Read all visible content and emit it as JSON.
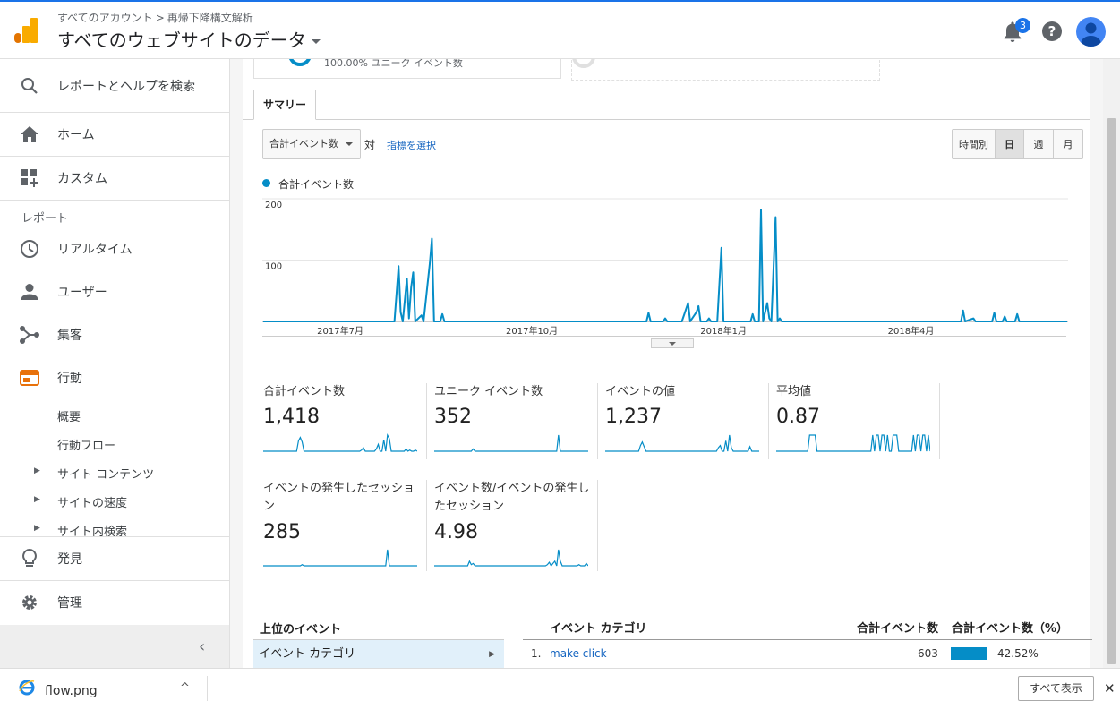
{
  "header": {
    "breadcrumb": [
      "すべてのアカウント",
      "再帰下降構文解析"
    ],
    "breadcrumb_sep": ">",
    "property_title": "すべてのウェブサイトのデータ",
    "notification_count": "3",
    "help_label": "?"
  },
  "sidebar": {
    "search": "レポートとヘルプを検索",
    "home": "ホーム",
    "custom": "カスタム",
    "reports_header": "レポート",
    "realtime": "リアルタイム",
    "audience": "ユーザー",
    "acquisition": "集客",
    "behavior": "行動",
    "behavior_sub": [
      "概要",
      "行動フロー",
      "サイト コンテンツ",
      "サイトの速度",
      "サイト内検索"
    ],
    "discover": "発見",
    "admin": "管理",
    "collapse": "‹"
  },
  "top_card": {
    "text": "100.00% ユニーク イベント数"
  },
  "tabs": {
    "summary": "サマリー"
  },
  "controls": {
    "metric_select": "合計イベント数",
    "vs": "対",
    "choose_metric": "指標を選択",
    "period": [
      "時間別",
      "日",
      "週",
      "月"
    ],
    "period_active": "日"
  },
  "chart_data": {
    "type": "line",
    "legend": "合計イベント数",
    "color": "#058dc7",
    "y_ticks": [
      "200",
      "100"
    ],
    "ylim": [
      0,
      200
    ],
    "x_ticks": [
      "2017年7月",
      "2017年10月",
      "2018年1月",
      "2018年4月"
    ],
    "x_tick_dates": [
      "2017-07-01",
      "2017-10-01",
      "2018-01-01",
      "2018-04-01"
    ],
    "x_range": [
      "2017-05-25",
      "2018-06-15"
    ],
    "series": [
      {
        "points": [
          [
            "2017-05-25",
            0
          ],
          [
            "2017-07-27",
            0
          ],
          [
            "2017-07-29",
            90
          ],
          [
            "2017-07-30",
            15
          ],
          [
            "2017-07-31",
            0
          ],
          [
            "2017-08-02",
            70
          ],
          [
            "2017-08-03",
            5
          ],
          [
            "2017-08-04",
            55
          ],
          [
            "2017-08-05",
            80
          ],
          [
            "2017-08-06",
            0
          ],
          [
            "2017-08-09",
            10
          ],
          [
            "2017-08-10",
            0
          ],
          [
            "2017-08-13",
            95
          ],
          [
            "2017-08-14",
            135
          ],
          [
            "2017-08-15",
            0
          ],
          [
            "2017-08-18",
            0
          ],
          [
            "2017-08-19",
            12
          ],
          [
            "2017-08-20",
            0
          ],
          [
            "2017-11-25",
            0
          ],
          [
            "2017-11-26",
            14
          ],
          [
            "2017-11-27",
            0
          ],
          [
            "2017-12-03",
            0
          ],
          [
            "2017-12-04",
            5
          ],
          [
            "2017-12-05",
            0
          ],
          [
            "2017-12-12",
            0
          ],
          [
            "2017-12-15",
            30
          ],
          [
            "2017-12-16",
            0
          ],
          [
            "2017-12-19",
            15
          ],
          [
            "2017-12-20",
            25
          ],
          [
            "2017-12-21",
            0
          ],
          [
            "2017-12-24",
            0
          ],
          [
            "2017-12-25",
            5
          ],
          [
            "2017-12-26",
            0
          ],
          [
            "2017-12-29",
            0
          ],
          [
            "2017-12-31",
            120
          ],
          [
            "2018-01-01",
            0
          ],
          [
            "2018-01-14",
            0
          ],
          [
            "2018-01-15",
            12
          ],
          [
            "2018-01-16",
            0
          ],
          [
            "2018-01-18",
            0
          ],
          [
            "2018-01-19",
            182
          ],
          [
            "2018-01-20",
            0
          ],
          [
            "2018-01-22",
            30
          ],
          [
            "2018-01-23",
            5
          ],
          [
            "2018-01-24",
            0
          ],
          [
            "2018-01-26",
            170
          ],
          [
            "2018-01-27",
            0
          ],
          [
            "2018-01-28",
            5
          ],
          [
            "2018-01-29",
            0
          ],
          [
            "2018-04-25",
            0
          ],
          [
            "2018-04-26",
            18
          ],
          [
            "2018-04-27",
            0
          ],
          [
            "2018-05-01",
            5
          ],
          [
            "2018-05-02",
            0
          ],
          [
            "2018-05-10",
            0
          ],
          [
            "2018-05-11",
            14
          ],
          [
            "2018-05-12",
            0
          ],
          [
            "2018-05-15",
            0
          ],
          [
            "2018-05-16",
            8
          ],
          [
            "2018-05-17",
            0
          ],
          [
            "2018-05-21",
            0
          ],
          [
            "2018-05-22",
            12
          ],
          [
            "2018-05-23",
            0
          ],
          [
            "2018-06-15",
            0
          ]
        ]
      }
    ]
  },
  "scorecards": [
    {
      "label": "合計イベント数",
      "value": "1,418",
      "spark": [
        0,
        0,
        0,
        0,
        0,
        0,
        0,
        0,
        0,
        0,
        0,
        0,
        0,
        0,
        0,
        0,
        0,
        0,
        0,
        9,
        12,
        8,
        0,
        0,
        0,
        0,
        0,
        0,
        0,
        0,
        0,
        0,
        0,
        0,
        0,
        0,
        0,
        0,
        0,
        0,
        0,
        0,
        0,
        0,
        0,
        0,
        0,
        0,
        0,
        0,
        0,
        0,
        0,
        1,
        3,
        0,
        0,
        0,
        0,
        0,
        0,
        2,
        6,
        0,
        0,
        10,
        0,
        14,
        11,
        0,
        0,
        0,
        0,
        0,
        0,
        0,
        0,
        2,
        0,
        1,
        0,
        0,
        1,
        0
      ]
    },
    {
      "label": "ユニーク イベント数",
      "value": "352",
      "spark": [
        0,
        0,
        0,
        0,
        0,
        0,
        0,
        0,
        0,
        0,
        0,
        0,
        0,
        0,
        0,
        0,
        0,
        0,
        0,
        0,
        0,
        2,
        0,
        0,
        0,
        0,
        0,
        0,
        0,
        0,
        0,
        0,
        0,
        0,
        0,
        0,
        0,
        0,
        0,
        0,
        0,
        0,
        0,
        0,
        0,
        0,
        0,
        0,
        0,
        0,
        0,
        0,
        0,
        0,
        0,
        0,
        0,
        0,
        0,
        0,
        0,
        0,
        0,
        0,
        0,
        0,
        0,
        14,
        0,
        0,
        0,
        0,
        0,
        0,
        0,
        0,
        0,
        0,
        0,
        0,
        0,
        0,
        0,
        0
      ]
    },
    {
      "label": "イベントの値",
      "value": "1,237",
      "spark": [
        0,
        0,
        0,
        0,
        0,
        0,
        0,
        0,
        0,
        0,
        0,
        0,
        0,
        0,
        0,
        0,
        0,
        0,
        0,
        5,
        8,
        4,
        0,
        0,
        0,
        0,
        0,
        0,
        0,
        0,
        0,
        0,
        0,
        0,
        0,
        0,
        0,
        0,
        0,
        0,
        0,
        0,
        0,
        0,
        0,
        0,
        0,
        0,
        0,
        0,
        0,
        0,
        0,
        0,
        0,
        0,
        0,
        0,
        0,
        0,
        0,
        3,
        5,
        0,
        0,
        9,
        0,
        14,
        3,
        0,
        0,
        0,
        0,
        0,
        0,
        0,
        0,
        0,
        4,
        0,
        0,
        0,
        0,
        0
      ]
    },
    {
      "label": "平均値",
      "value": "0.87",
      "spark": [
        0,
        0,
        0,
        0,
        0,
        0,
        0,
        0,
        0,
        0,
        0,
        0,
        0,
        0,
        0,
        0,
        0,
        0,
        14,
        14,
        14,
        14,
        0,
        0,
        0,
        0,
        0,
        0,
        0,
        0,
        0,
        0,
        0,
        0,
        0,
        0,
        0,
        0,
        0,
        0,
        0,
        0,
        0,
        0,
        0,
        0,
        0,
        0,
        0,
        0,
        0,
        0,
        14,
        0,
        14,
        14,
        0,
        14,
        14,
        0,
        14,
        0,
        0,
        14,
        14,
        14,
        0,
        0,
        0,
        0,
        0,
        0,
        0,
        0,
        14,
        0,
        14,
        14,
        0,
        14,
        14,
        0,
        14,
        0
      ]
    },
    {
      "label": "イベントの発生したセッション",
      "value": "285",
      "spark": [
        0,
        0,
        0,
        0,
        0,
        0,
        0,
        0,
        0,
        0,
        0,
        0,
        0,
        0,
        0,
        0,
        0,
        0,
        0,
        0,
        0,
        1,
        0,
        0,
        0,
        0,
        0,
        0,
        0,
        0,
        0,
        0,
        0,
        0,
        0,
        0,
        0,
        0,
        0,
        0,
        0,
        0,
        0,
        0,
        0,
        0,
        0,
        0,
        0,
        0,
        0,
        0,
        0,
        0,
        0,
        0,
        0,
        0,
        0,
        0,
        0,
        0,
        0,
        0,
        0,
        0,
        0,
        14,
        0,
        0,
        0,
        0,
        0,
        0,
        0,
        0,
        0,
        0,
        0,
        0,
        0,
        0,
        0,
        0
      ]
    },
    {
      "label": "イベント数/イベントの発生したセッション",
      "value": "4.98",
      "spark": [
        0,
        0,
        0,
        0,
        0,
        0,
        0,
        0,
        0,
        0,
        0,
        0,
        0,
        0,
        0,
        0,
        0,
        0,
        0,
        4,
        1,
        2,
        0,
        0,
        0,
        0,
        0,
        0,
        0,
        0,
        0,
        0,
        0,
        0,
        0,
        0,
        0,
        0,
        0,
        0,
        0,
        0,
        0,
        0,
        0,
        0,
        0,
        0,
        0,
        0,
        0,
        0,
        0,
        0,
        0,
        0,
        0,
        0,
        0,
        0,
        0,
        1,
        3,
        0,
        2,
        4,
        0,
        14,
        4,
        0,
        0,
        0,
        0,
        0,
        0,
        0,
        0,
        0,
        1,
        0,
        0,
        0,
        2,
        0
      ]
    }
  ],
  "top_events": {
    "header": "上位のイベント",
    "item": "イベント カテゴリ"
  },
  "table": {
    "headers": [
      "イベント カテゴリ",
      "合計イベント数",
      "合計イベント数（%）"
    ],
    "rows": [
      {
        "num": "1.",
        "category": "make click",
        "total": "603",
        "pct": "42.52%",
        "pct_value": 42.52
      }
    ]
  },
  "download_bar": {
    "filename": "flow.png",
    "show_all": "すべて表示",
    "close": "✕",
    "caret": "^"
  }
}
